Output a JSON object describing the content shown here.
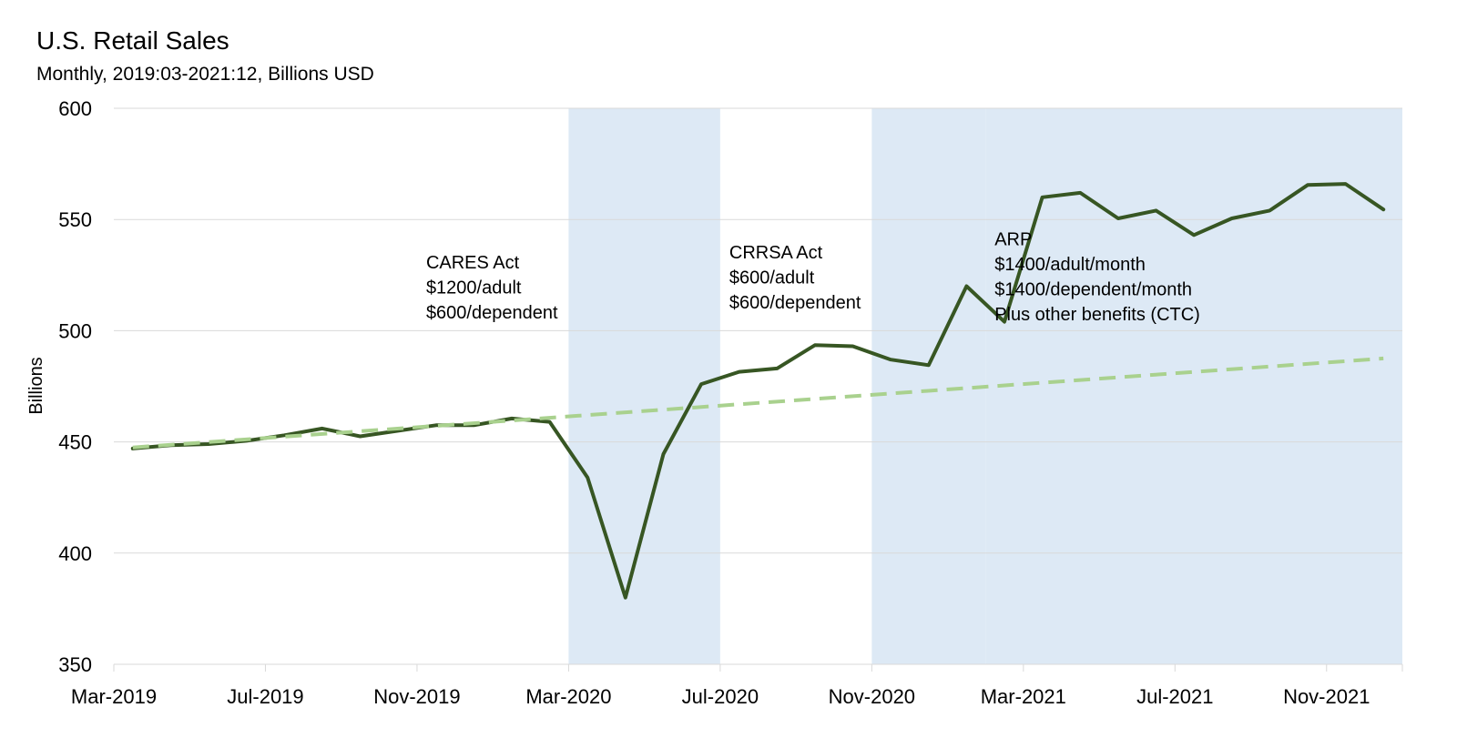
{
  "chart_data": {
    "type": "line",
    "title": "U.S. Retail Sales",
    "subtitle": "Monthly, 2019:03-2021:12, Billions USD",
    "ylabel": "Billions",
    "xlabel": "",
    "ylim": [
      350,
      600
    ],
    "y_ticks": [
      350,
      400,
      450,
      500,
      550,
      600
    ],
    "x_start": "Mar-2019",
    "x_end": "Dec-2021",
    "x_tick_labels": [
      "Mar-2019",
      "Jul-2019",
      "Nov-2019",
      "Mar-2020",
      "Jul-2020",
      "Nov-2020",
      "Mar-2021",
      "Jul-2021",
      "Nov-2021"
    ],
    "grid": true,
    "series": [
      {
        "type": "actual",
        "color": "#375623",
        "style": "solid",
        "points": [
          [
            "Mar-2019",
            447
          ],
          [
            "Apr-2019",
            448.5
          ],
          [
            "May-2019",
            449
          ],
          [
            "Jun-2019",
            450.5
          ],
          [
            "Jul-2019",
            453
          ],
          [
            "Aug-2019",
            456
          ],
          [
            "Sep-2019",
            452.5
          ],
          [
            "Oct-2019",
            455
          ],
          [
            "Nov-2019",
            457.5
          ],
          [
            "Dec-2019",
            457.5
          ],
          [
            "Jan-2020",
            460.5
          ],
          [
            "Feb-2020",
            459
          ],
          [
            "Mar-2020",
            434
          ],
          [
            "Apr-2020",
            380
          ],
          [
            "May-2020",
            444.5
          ],
          [
            "Jun-2020",
            476
          ],
          [
            "Jul-2020",
            481.5
          ],
          [
            "Aug-2020",
            483
          ],
          [
            "Sep-2020",
            493.5
          ],
          [
            "Oct-2020",
            493
          ],
          [
            "Nov-2020",
            487
          ],
          [
            "Dec-2020",
            484.5
          ],
          [
            "Jan-2021",
            520
          ],
          [
            "Feb-2021",
            504
          ],
          [
            "Mar-2021",
            560
          ],
          [
            "Apr-2021",
            562
          ],
          [
            "May-2021",
            550.5
          ],
          [
            "Jun-2021",
            554
          ],
          [
            "Jul-2021",
            543
          ],
          [
            "Aug-2021",
            550.5
          ],
          [
            "Sep-2021",
            554
          ],
          [
            "Oct-2021",
            565.5
          ],
          [
            "Nov-2021",
            566
          ],
          [
            "Dec-2021",
            554.5
          ]
        ]
      },
      {
        "type": "trend",
        "color": "#a9d18e",
        "style": "dashed",
        "points": [
          [
            "Mar-2019",
            447.5
          ],
          [
            "Dec-2021",
            487.5
          ]
        ]
      }
    ],
    "shaded_regions": [
      {
        "start": "Mar-2020",
        "end": "Jun-2020",
        "color": "#dde9f5"
      },
      {
        "start": "Nov-2020",
        "end": "Jan-2021",
        "color": "#dde9f5"
      },
      {
        "start": "Feb-2021",
        "end": "Dec-2021",
        "color": "#dde9f5"
      }
    ],
    "annotations": [
      {
        "lines": [
          "CARES Act",
          "$1200/adult",
          "$600/dependent"
        ],
        "at": [
          "Nov-2019",
          528
        ]
      },
      {
        "lines": [
          "CRRSA Act",
          "$600/adult",
          "$600/dependent"
        ],
        "at": [
          "Jul-2020",
          532.5
        ]
      },
      {
        "lines": [
          "ARP",
          "$1400/adult/month",
          "$1400/dependent/month",
          "",
          "Plus other benefits (CTC)"
        ],
        "at": [
          "Feb-2021",
          538.5
        ]
      }
    ]
  }
}
